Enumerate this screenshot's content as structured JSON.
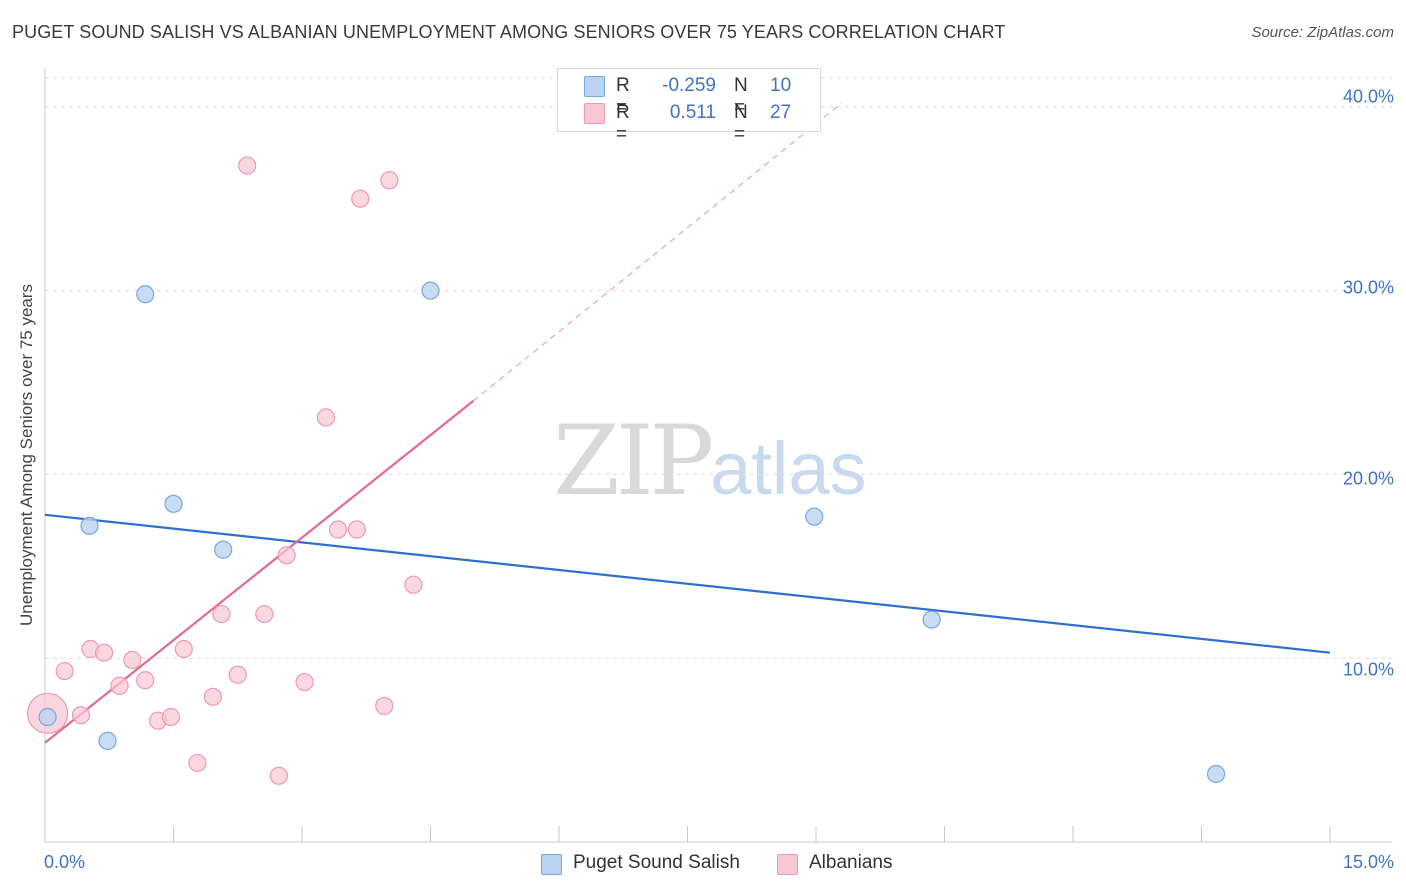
{
  "header": {
    "title": "PUGET SOUND SALISH VS ALBANIAN UNEMPLOYMENT AMONG SENIORS OVER 75 YEARS CORRELATION CHART",
    "source": "Source: ZipAtlas.com"
  },
  "watermark": {
    "part1": "ZIP",
    "part2": "atlas"
  },
  "legend": {
    "rows": [
      {
        "r_label": "R =",
        "r_value": "-0.259",
        "n_label": "N =",
        "n_value": "10"
      },
      {
        "r_label": "R =",
        "r_value": "0.511",
        "n_label": "N =",
        "n_value": "27"
      }
    ]
  },
  "bottom_legend": {
    "series1": "Puget Sound Salish",
    "series2": "Albanians"
  },
  "colors": {
    "blue_fill": "#bad3f3",
    "blue_stroke": "#7aa7de",
    "blue_line": "#2f6fcf",
    "pink_fill": "#f8c6d4",
    "pink_stroke": "#eb9ab2",
    "pink_line": "#e4698f",
    "grid": "#dcdcdc",
    "axis_text": "#3f74c5"
  },
  "chart_data": {
    "type": "scatter",
    "title": "PUGET SOUND SALISH VS ALBANIAN UNEMPLOYMENT AMONG SENIORS OVER 75 YEARS CORRELATION CHART",
    "xlabel": "",
    "ylabel": "Unemployment Among Seniors over 75 years",
    "xlim": [
      0,
      15
    ],
    "ylim": [
      0,
      42
    ],
    "x_tick_labels": [
      "0.0%",
      "15.0%"
    ],
    "y_ticks": [
      10,
      20,
      30,
      40
    ],
    "y_tick_labels": [
      "10.0%",
      "20.0%",
      "30.0%",
      "40.0%"
    ],
    "grid": true,
    "series": [
      {
        "name": "Puget Sound Salish",
        "r": -0.259,
        "n": 10,
        "points": [
          {
            "x": 0.03,
            "y": 6.8
          },
          {
            "x": 0.52,
            "y": 17.2
          },
          {
            "x": 0.73,
            "y": 5.5
          },
          {
            "x": 1.17,
            "y": 29.8
          },
          {
            "x": 1.5,
            "y": 18.4
          },
          {
            "x": 2.08,
            "y": 15.9
          },
          {
            "x": 4.5,
            "y": 30.0
          },
          {
            "x": 8.98,
            "y": 17.7
          },
          {
            "x": 10.35,
            "y": 12.1
          },
          {
            "x": 13.67,
            "y": 3.7
          }
        ],
        "trend": {
          "x0": 0,
          "y0": 17.8,
          "x1": 15,
          "y1": 10.3
        }
      },
      {
        "name": "Albanians",
        "r": 0.511,
        "n": 27,
        "points": [
          {
            "x": 0.03,
            "y": 7.0,
            "large": true
          },
          {
            "x": 0.23,
            "y": 9.3
          },
          {
            "x": 0.42,
            "y": 6.9
          },
          {
            "x": 0.53,
            "y": 10.5
          },
          {
            "x": 0.69,
            "y": 10.3
          },
          {
            "x": 0.87,
            "y": 8.5
          },
          {
            "x": 1.02,
            "y": 9.9
          },
          {
            "x": 1.17,
            "y": 8.8
          },
          {
            "x": 1.32,
            "y": 6.6
          },
          {
            "x": 1.47,
            "y": 6.8
          },
          {
            "x": 1.62,
            "y": 10.5
          },
          {
            "x": 1.78,
            "y": 4.3
          },
          {
            "x": 1.96,
            "y": 7.9
          },
          {
            "x": 2.06,
            "y": 12.4
          },
          {
            "x": 2.25,
            "y": 9.1
          },
          {
            "x": 2.36,
            "y": 36.8
          },
          {
            "x": 2.56,
            "y": 12.4
          },
          {
            "x": 2.73,
            "y": 3.6
          },
          {
            "x": 2.82,
            "y": 15.6
          },
          {
            "x": 3.03,
            "y": 8.7
          },
          {
            "x": 3.28,
            "y": 23.1
          },
          {
            "x": 3.42,
            "y": 17.0
          },
          {
            "x": 3.64,
            "y": 17.0
          },
          {
            "x": 3.68,
            "y": 35.0
          },
          {
            "x": 3.96,
            "y": 7.4
          },
          {
            "x": 4.02,
            "y": 36.0
          },
          {
            "x": 4.3,
            "y": 14.0
          }
        ],
        "trend": {
          "x0": 0,
          "y0": 5.4,
          "x1": 5.0,
          "y1": 24.0,
          "dashed_x1": 9.3,
          "dashed_y1": 40.2
        }
      }
    ]
  }
}
